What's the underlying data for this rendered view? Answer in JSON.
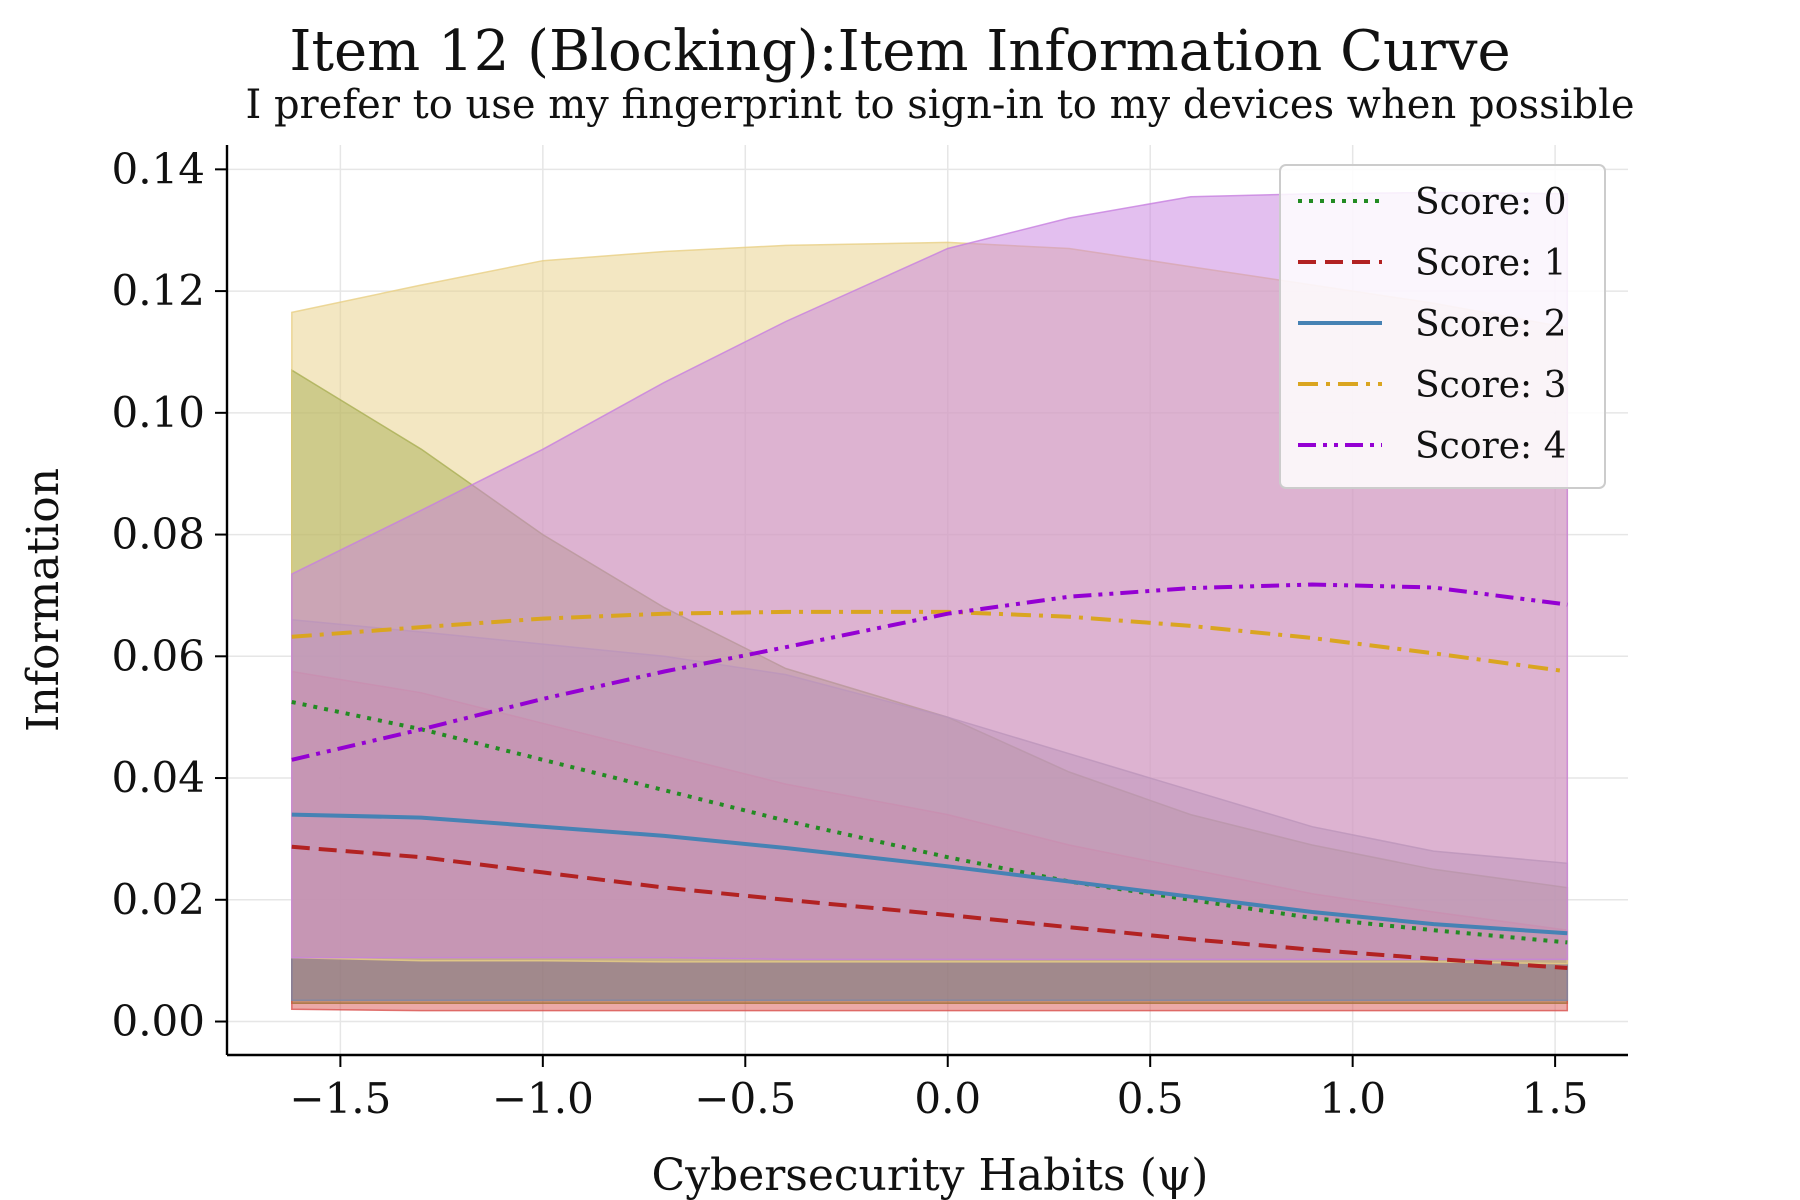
{
  "chart_data": {
    "type": "line",
    "title": "Item 12 (Blocking):Item Information Curve",
    "subtitle": "I prefer to use my fingerprint to sign-in to my devices when possible",
    "xlabel": "Cybersecurity Habits (ψ)",
    "ylabel": "Information",
    "xlim": [
      -1.78,
      1.68
    ],
    "ylim": [
      -0.0055,
      0.144
    ],
    "x_ticks": [
      -1.5,
      -1.0,
      -0.5,
      0.0,
      0.5,
      1.0,
      1.5
    ],
    "x_tick_labels": [
      "−1.5",
      "−1.0",
      "−0.5",
      "0.0",
      "0.5",
      "1.0",
      "1.5"
    ],
    "y_ticks": [
      0.0,
      0.02,
      0.04,
      0.06,
      0.08,
      0.1,
      0.12,
      0.14
    ],
    "y_tick_labels": [
      "0.00",
      "0.02",
      "0.04",
      "0.06",
      "0.08",
      "0.10",
      "0.12",
      "0.14"
    ],
    "grid": true,
    "legend_position": "top-right",
    "x": [
      -1.62,
      -1.3,
      -1.0,
      -0.7,
      -0.4,
      0.0,
      0.3,
      0.6,
      0.9,
      1.2,
      1.53
    ],
    "series": [
      {
        "name": "Score: 0",
        "color": "#228B22",
        "dash": "dotted",
        "values": [
          0.0525,
          0.048,
          0.043,
          0.038,
          0.033,
          0.027,
          0.023,
          0.02,
          0.017,
          0.015,
          0.013
        ],
        "band_upper": [
          0.107,
          0.094,
          0.08,
          0.068,
          0.058,
          0.05,
          0.041,
          0.034,
          0.029,
          0.025,
          0.022
        ],
        "band_lower": [
          0.003,
          0.003,
          0.003,
          0.003,
          0.003,
          0.003,
          0.003,
          0.003,
          0.003,
          0.003,
          0.003
        ],
        "band_color": "#6b8e23"
      },
      {
        "name": "Score: 1",
        "color": "#B22222",
        "dash": "dashed",
        "values": [
          0.0287,
          0.027,
          0.0245,
          0.022,
          0.02,
          0.0175,
          0.0155,
          0.0135,
          0.0118,
          0.0103,
          0.0088
        ],
        "band_upper": [
          0.0575,
          0.054,
          0.049,
          0.044,
          0.039,
          0.034,
          0.029,
          0.025,
          0.021,
          0.018,
          0.015
        ],
        "band_lower": [
          0.002,
          0.0018,
          0.0018,
          0.0018,
          0.0018,
          0.0018,
          0.0018,
          0.0018,
          0.0018,
          0.0018,
          0.0018
        ],
        "band_color": "#d9534f"
      },
      {
        "name": "Score: 2",
        "color": "#4682B4",
        "dash": "solid",
        "values": [
          0.034,
          0.0335,
          0.032,
          0.0305,
          0.0285,
          0.0255,
          0.023,
          0.0205,
          0.018,
          0.016,
          0.0145
        ],
        "band_upper": [
          0.066,
          0.064,
          0.062,
          0.06,
          0.057,
          0.05,
          0.044,
          0.038,
          0.032,
          0.028,
          0.026
        ],
        "band_lower": [
          0.0035,
          0.0035,
          0.0035,
          0.0035,
          0.0035,
          0.0035,
          0.0035,
          0.0035,
          0.0035,
          0.0035,
          0.0035
        ],
        "band_color": "#7b86a8"
      },
      {
        "name": "Score: 3",
        "color": "#DAA520",
        "dash": "dashdot",
        "values": [
          0.0632,
          0.0648,
          0.0662,
          0.067,
          0.0673,
          0.0673,
          0.0665,
          0.065,
          0.063,
          0.0605,
          0.0575
        ],
        "band_upper": [
          0.1165,
          0.121,
          0.125,
          0.1265,
          0.1275,
          0.128,
          0.127,
          0.124,
          0.121,
          0.118,
          0.114
        ],
        "band_lower": [
          0.0105,
          0.01,
          0.01,
          0.0098,
          0.0098,
          0.0098,
          0.0098,
          0.0098,
          0.0098,
          0.0098,
          0.0095
        ],
        "band_color": "#e8cf85"
      },
      {
        "name": "Score: 4",
        "color": "#9400D3",
        "dash": "dashdotdot",
        "values": [
          0.043,
          0.048,
          0.053,
          0.0575,
          0.0615,
          0.067,
          0.0698,
          0.0712,
          0.0718,
          0.0713,
          0.0685
        ],
        "band_upper": [
          0.0735,
          0.084,
          0.094,
          0.105,
          0.115,
          0.127,
          0.132,
          0.1355,
          0.136,
          0.1362,
          0.136
        ],
        "band_lower": [
          0.0105,
          0.0105,
          0.0105,
          0.0105,
          0.0102,
          0.0102,
          0.0102,
          0.0102,
          0.0102,
          0.0102,
          0.0102
        ],
        "band_color": "#c77fe0"
      }
    ]
  }
}
